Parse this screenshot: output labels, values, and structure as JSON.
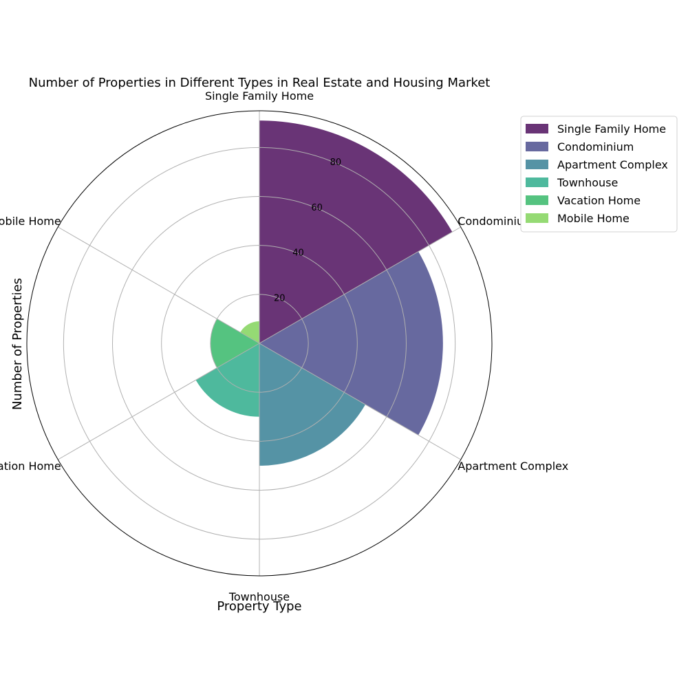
{
  "chart_data": {
    "type": "polar-bar",
    "title": "Number of Properties in Different Types in Real Estate and Housing Market",
    "xlabel": "Property Type",
    "ylabel": "Number of Properties",
    "categories": [
      "Single Family Home",
      "Condominium",
      "Apartment Complex",
      "Townhouse",
      "Vacation Home",
      "Mobile Home"
    ],
    "values": [
      91,
      75,
      50,
      30,
      20,
      9
    ],
    "colors": [
      "#440154",
      "#414487",
      "#2a788e",
      "#22a884",
      "#2ab460",
      "#7ad151"
    ],
    "radial_ticks": [
      "20",
      "40",
      "60",
      "80"
    ],
    "r_max": 95,
    "grid": true,
    "legend_position": "upper-right outside"
  }
}
